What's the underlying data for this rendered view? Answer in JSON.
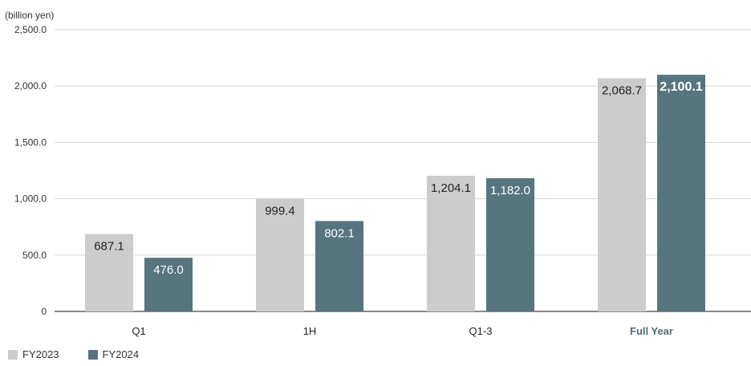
{
  "chart_data": {
    "type": "bar",
    "unit_label": "(billion yen)",
    "categories": [
      "Q1",
      "1H",
      "Q1-3",
      "Full Year"
    ],
    "emphasized_category": "Full Year",
    "series": [
      {
        "name": "FY2023",
        "values": [
          687.1,
          999.4,
          1204.1,
          2068.7
        ],
        "labels": [
          "687.1",
          "999.4",
          "1,204.1",
          "2,068.7"
        ],
        "color": "#cccccc",
        "label_color": "#222222"
      },
      {
        "name": "FY2024",
        "values": [
          476.0,
          802.1,
          1182.0,
          2100.1
        ],
        "labels": [
          "476.0",
          "802.1",
          "1,182.0",
          "2,100.1"
        ],
        "color": "#56757f",
        "label_color": "#ffffff"
      }
    ],
    "ylim": [
      0,
      2500
    ],
    "yticks": [
      0,
      500,
      1000,
      1500,
      2000,
      2500
    ],
    "ytick_labels": [
      "0",
      "500.0",
      "1,000.0",
      "1,500.0",
      "2,000.0",
      "2,500.0"
    ],
    "grid": true,
    "legend_position": "bottom-left",
    "emphasis_color": "#4f6b76"
  }
}
